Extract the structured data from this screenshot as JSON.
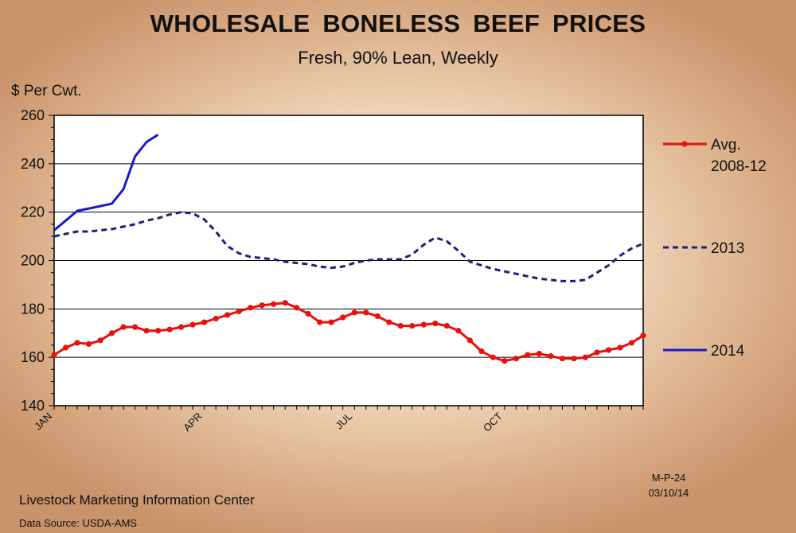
{
  "chart_data": {
    "type": "line",
    "title": "WHOLESALE  BONELESS  BEEF  PRICES",
    "subtitle": "Fresh, 90% Lean, Weekly",
    "ylabel": "$ Per Cwt.",
    "xlabel": "",
    "ylim": [
      140,
      260
    ],
    "yticks": [
      140,
      160,
      180,
      200,
      220,
      240,
      260
    ],
    "xlim": [
      1,
      52
    ],
    "xticks": [
      {
        "label": "JAN",
        "week": 1
      },
      {
        "label": "APR",
        "week": 14
      },
      {
        "label": "JUL",
        "week": 27
      },
      {
        "label": "OCT",
        "week": 40
      }
    ],
    "grid": true,
    "legend_position": "right",
    "series": [
      {
        "name": "Avg. 2008-12",
        "label_lines": [
          "Avg.",
          "2008-12"
        ],
        "color": "#e8100c",
        "style": "solid-markers",
        "x": [
          1,
          2,
          3,
          4,
          5,
          6,
          7,
          8,
          9,
          10,
          11,
          12,
          13,
          14,
          15,
          16,
          17,
          18,
          19,
          20,
          21,
          22,
          23,
          24,
          25,
          26,
          27,
          28,
          29,
          30,
          31,
          32,
          33,
          34,
          35,
          36,
          37,
          38,
          39,
          40,
          41,
          42,
          43,
          44,
          45,
          46,
          47,
          48,
          49,
          50,
          51,
          52
        ],
        "values": [
          161,
          164,
          166,
          165.5,
          167,
          170,
          172.5,
          172.5,
          171,
          171,
          171.5,
          172.5,
          173.5,
          174.5,
          176,
          177.5,
          179,
          180.5,
          181.5,
          182,
          182.5,
          180.5,
          178,
          174.5,
          174.5,
          176.5,
          178.5,
          178.5,
          177,
          174.5,
          173,
          173,
          173.5,
          174,
          173,
          171,
          167,
          162.5,
          160,
          158.5,
          159.5,
          161,
          161.5,
          160.5,
          159.5,
          159.5,
          160,
          162,
          163,
          164,
          166,
          169
        ]
      },
      {
        "name": "2013",
        "color": "#1f1f7a",
        "style": "dashed",
        "x": [
          1,
          2,
          3,
          4,
          5,
          6,
          7,
          8,
          9,
          10,
          11,
          12,
          13,
          14,
          15,
          16,
          17,
          18,
          19,
          20,
          21,
          22,
          23,
          24,
          25,
          26,
          27,
          28,
          29,
          30,
          31,
          32,
          33,
          34,
          35,
          36,
          37,
          38,
          39,
          40,
          41,
          42,
          43,
          44,
          45,
          46,
          47,
          48,
          49,
          50,
          51,
          52
        ],
        "values": [
          210,
          211,
          212,
          212,
          212.5,
          213,
          214,
          215,
          216.5,
          217.5,
          219,
          220,
          219.5,
          217,
          212,
          206,
          203,
          201.5,
          201,
          200.5,
          199.5,
          199,
          198.5,
          197.5,
          197,
          197.5,
          199,
          200,
          200.5,
          200.5,
          200.5,
          202.5,
          206.5,
          209.5,
          208,
          204,
          199.5,
          198,
          196.5,
          195.5,
          194.5,
          193.5,
          192.5,
          192,
          191.5,
          191.5,
          192,
          195,
          198,
          202,
          205,
          207
        ]
      },
      {
        "name": "2014",
        "color": "#1a1acc",
        "style": "solid",
        "x": [
          1,
          2,
          3,
          4,
          5,
          6,
          7,
          8,
          9,
          10
        ],
        "values": [
          212.5,
          216.5,
          220.5,
          221.5,
          222.5,
          223.5,
          229.5,
          243,
          249,
          252
        ]
      }
    ]
  },
  "footer": {
    "credit": "Livestock Marketing Information Center",
    "source": "Data Source:  USDA-AMS",
    "code": "M-P-24",
    "date": "03/10/14"
  }
}
